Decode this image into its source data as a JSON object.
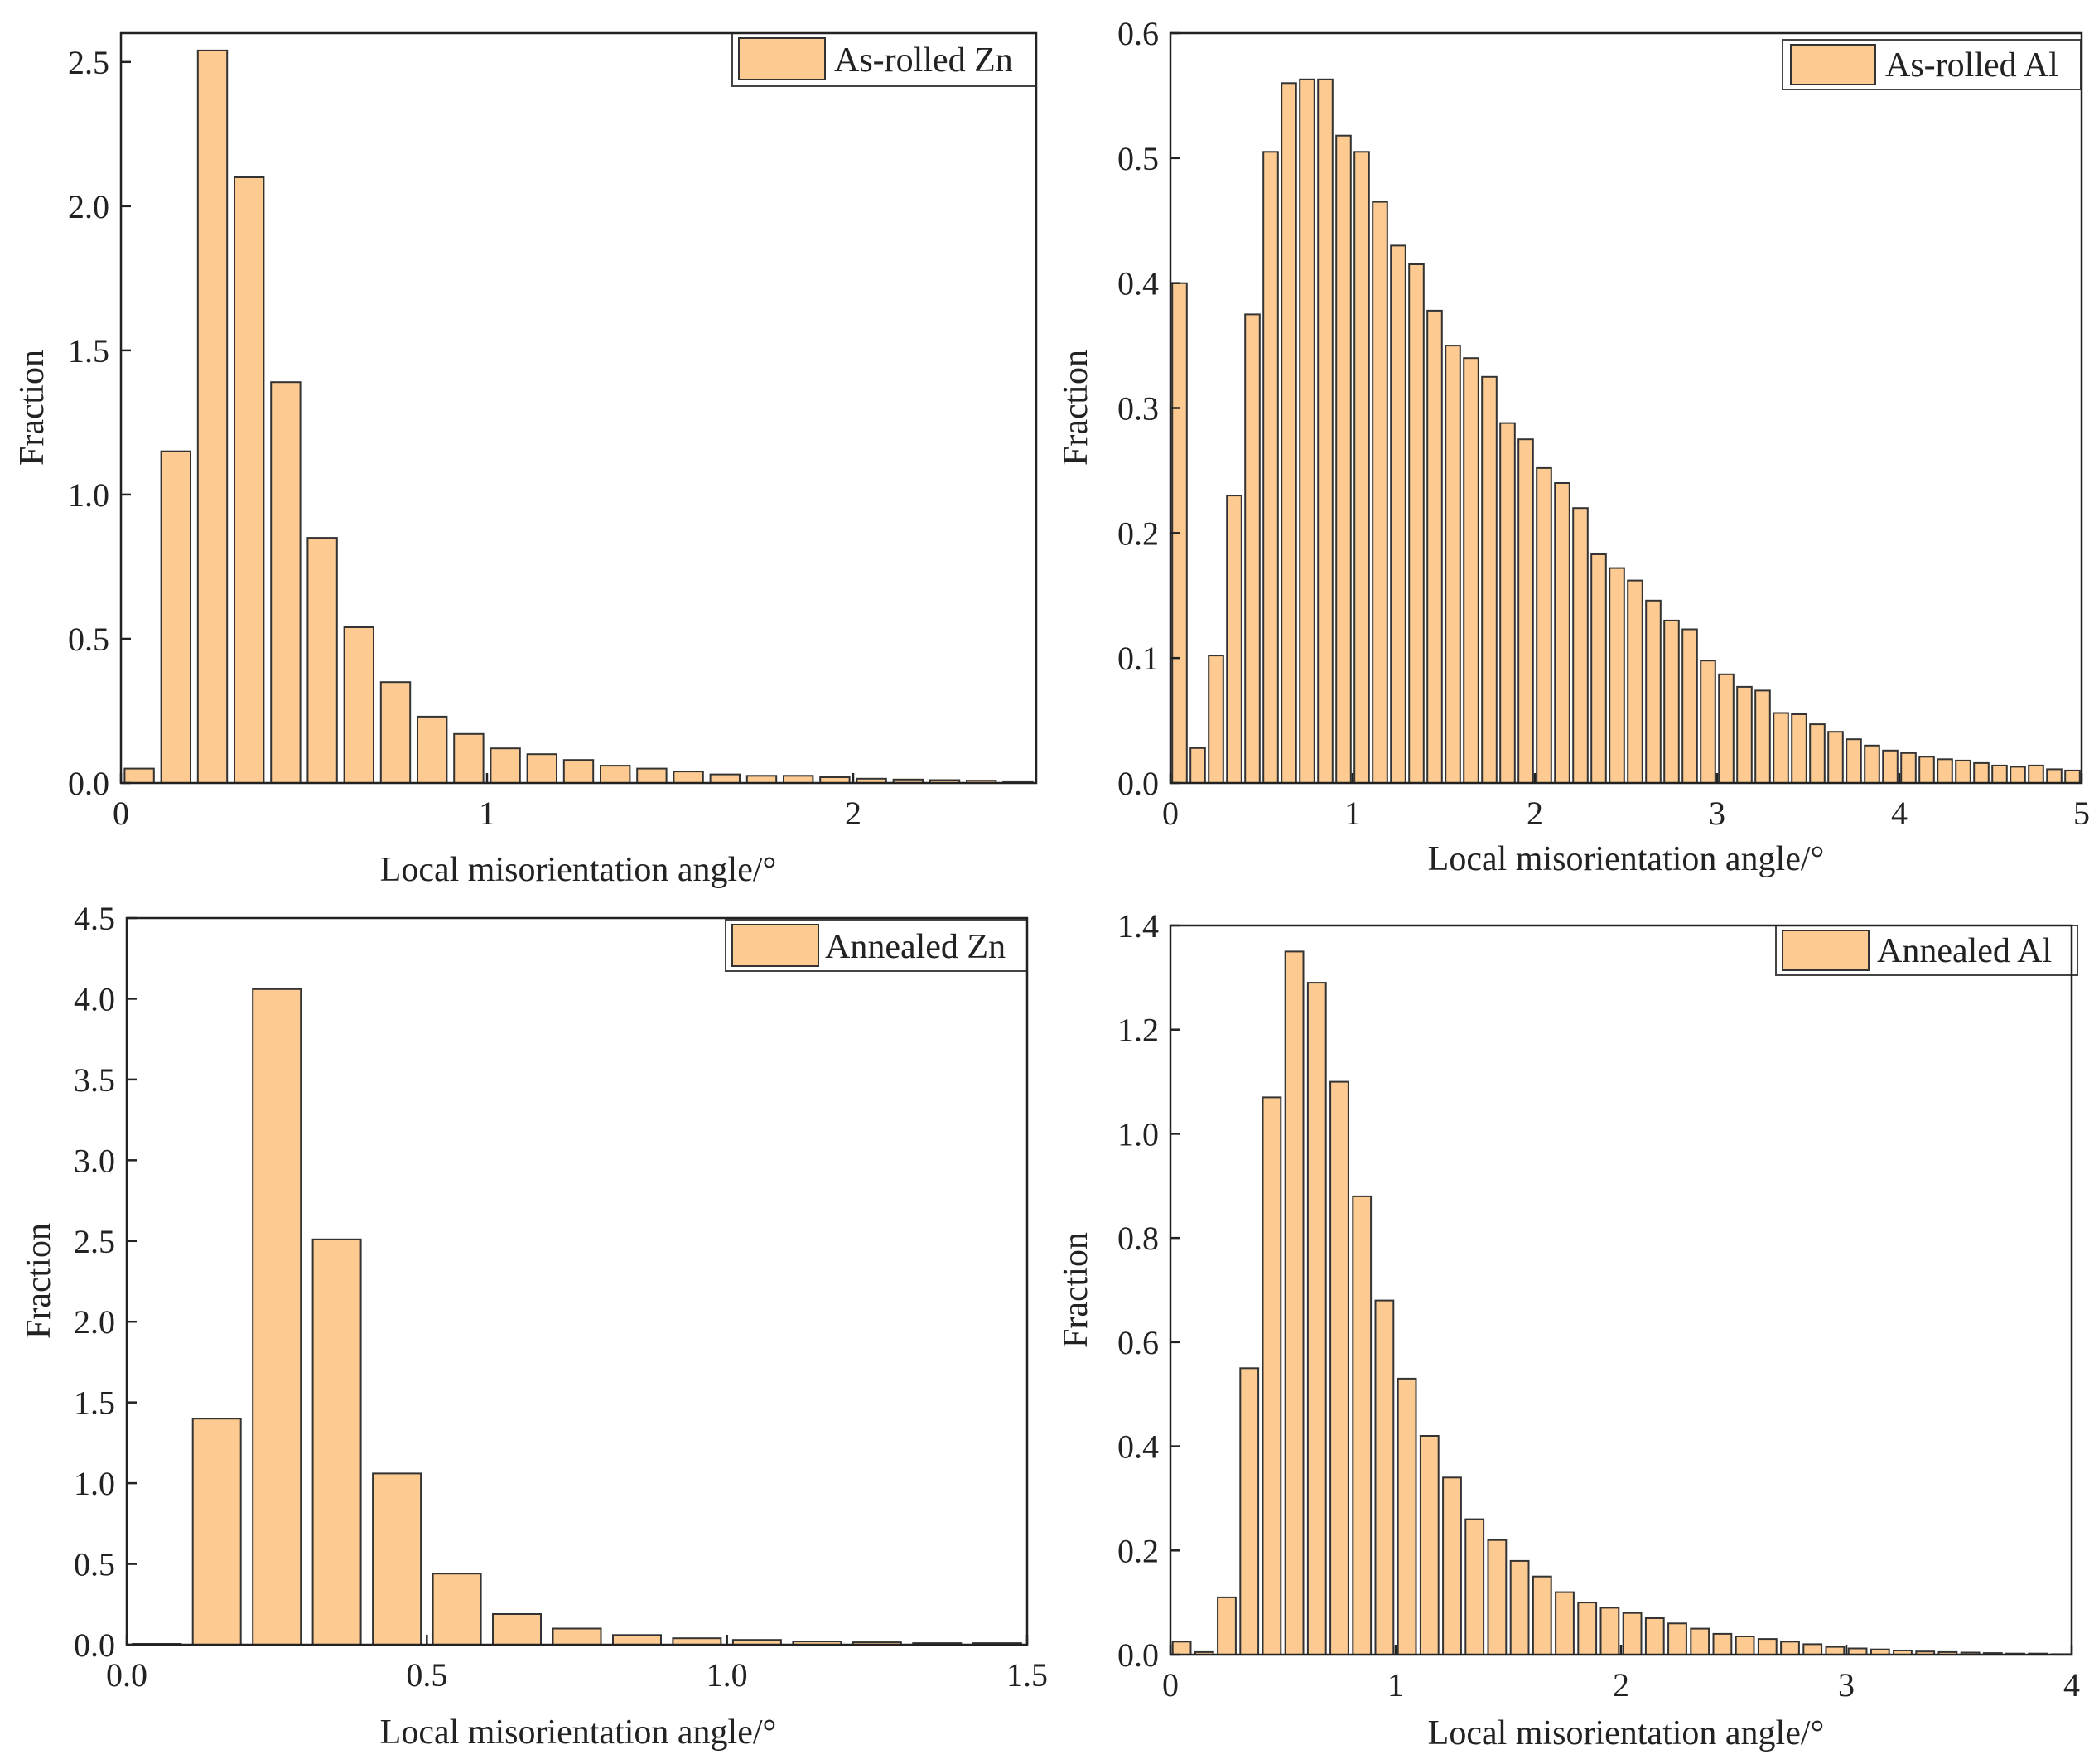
{
  "colors": {
    "bar_fill": "#FDCB92",
    "bar_edge": "#333333",
    "axis": "#222222",
    "background": "#ffffff"
  },
  "chart_data": [
    {
      "id": "as-rolled-zn",
      "type": "bar",
      "legend": "As-rolled Zn",
      "legend_position": "top-right",
      "xlabel": "Local misorientation angle/°",
      "ylabel": "Fraction",
      "xlim": [
        0,
        2.5
      ],
      "ylim": [
        0,
        2.6
      ],
      "xticks": [
        0,
        1,
        2
      ],
      "xtick_labels": [
        "0",
        "1",
        "2"
      ],
      "yticks": [
        0,
        0.5,
        1.0,
        1.5,
        2.0,
        2.5
      ],
      "ytick_labels": [
        "0.0",
        "0.5",
        "1.0",
        "1.5",
        "2.0",
        "2.5"
      ],
      "bin_width": 0.1,
      "x": [
        0.05,
        0.15,
        0.25,
        0.35,
        0.45,
        0.55,
        0.65,
        0.75,
        0.85,
        0.95,
        1.05,
        1.15,
        1.25,
        1.35,
        1.45,
        1.55,
        1.65,
        1.75,
        1.85,
        1.95,
        2.05,
        2.15,
        2.25,
        2.35,
        2.45
      ],
      "values": [
        0.05,
        1.15,
        2.54,
        2.1,
        1.39,
        0.85,
        0.54,
        0.35,
        0.23,
        0.17,
        0.12,
        0.1,
        0.08,
        0.06,
        0.05,
        0.04,
        0.03,
        0.025,
        0.025,
        0.02,
        0.015,
        0.012,
        0.01,
        0.008,
        0.006
      ]
    },
    {
      "id": "as-rolled-al",
      "type": "bar",
      "legend": "As-rolled Al",
      "legend_position": "top-right",
      "xlabel": "Local misorientation angle/°",
      "ylabel": "Fraction",
      "xlim": [
        0,
        5
      ],
      "ylim": [
        0,
        0.6
      ],
      "xticks": [
        0,
        1,
        2,
        3,
        4,
        5
      ],
      "xtick_labels": [
        "0",
        "1",
        "2",
        "3",
        "4",
        "5"
      ],
      "yticks": [
        0,
        0.1,
        0.2,
        0.3,
        0.4,
        0.5,
        0.6
      ],
      "ytick_labels": [
        "0.0",
        "0.1",
        "0.2",
        "0.3",
        "0.4",
        "0.5",
        "0.6"
      ],
      "bin_width": 0.1,
      "x": [
        0.05,
        0.15,
        0.25,
        0.35,
        0.45,
        0.55,
        0.65,
        0.75,
        0.85,
        0.95,
        1.05,
        1.15,
        1.25,
        1.35,
        1.45,
        1.55,
        1.65,
        1.75,
        1.85,
        1.95,
        2.05,
        2.15,
        2.25,
        2.35,
        2.45,
        2.55,
        2.65,
        2.75,
        2.85,
        2.95,
        3.05,
        3.15,
        3.25,
        3.35,
        3.45,
        3.55,
        3.65,
        3.75,
        3.85,
        3.95,
        4.05,
        4.15,
        4.25,
        4.35,
        4.45,
        4.55,
        4.65,
        4.75,
        4.85,
        4.95
      ],
      "values": [
        0.4,
        0.028,
        0.102,
        0.23,
        0.375,
        0.505,
        0.56,
        0.563,
        0.563,
        0.518,
        0.505,
        0.465,
        0.43,
        0.415,
        0.378,
        0.35,
        0.34,
        0.325,
        0.288,
        0.275,
        0.252,
        0.24,
        0.22,
        0.183,
        0.172,
        0.162,
        0.146,
        0.13,
        0.123,
        0.098,
        0.087,
        0.077,
        0.074,
        0.056,
        0.055,
        0.047,
        0.041,
        0.035,
        0.03,
        0.026,
        0.024,
        0.021,
        0.019,
        0.018,
        0.016,
        0.014,
        0.013,
        0.014,
        0.011,
        0.01
      ]
    },
    {
      "id": "annealed-zn",
      "type": "bar",
      "legend": "Annealed Zn",
      "legend_position": "top-right",
      "xlabel": "Local misorientation angle/°",
      "ylabel": "Fraction",
      "xlim": [
        0,
        1.5
      ],
      "ylim": [
        0,
        4.5
      ],
      "xticks": [
        0,
        0.5,
        1.0,
        1.5
      ],
      "xtick_labels": [
        "0.0",
        "0.5",
        "1.0",
        "1.5"
      ],
      "yticks": [
        0,
        0.5,
        1.0,
        1.5,
        2.0,
        2.5,
        3.0,
        3.5,
        4.0,
        4.5
      ],
      "ytick_labels": [
        "0.0",
        "0.5",
        "1.0",
        "1.5",
        "2.0",
        "2.5",
        "3.0",
        "3.5",
        "4.0",
        "4.5"
      ],
      "bin_width": 0.1,
      "x": [
        0.05,
        0.15,
        0.25,
        0.35,
        0.45,
        0.55,
        0.65,
        0.75,
        0.85,
        0.95,
        1.05,
        1.15,
        1.25,
        1.35,
        1.45
      ],
      "values": [
        0.005,
        1.4,
        4.06,
        2.51,
        1.06,
        0.44,
        0.19,
        0.1,
        0.06,
        0.04,
        0.03,
        0.02,
        0.015,
        0.01,
        0.01
      ]
    },
    {
      "id": "annealed-al",
      "type": "bar",
      "legend": "Annealed Al",
      "legend_position": "top-right",
      "xlabel": "Local misorientation angle/°",
      "ylabel": "Fraction",
      "xlim": [
        0,
        4
      ],
      "ylim": [
        0,
        1.4
      ],
      "xticks": [
        0,
        1,
        2,
        3,
        4
      ],
      "xtick_labels": [
        "0",
        "1",
        "2",
        "3",
        "4"
      ],
      "yticks": [
        0,
        0.2,
        0.4,
        0.6,
        0.8,
        1.0,
        1.2,
        1.4
      ],
      "ytick_labels": [
        "0.0",
        "0.2",
        "0.4",
        "0.6",
        "0.8",
        "1.0",
        "1.2",
        "1.4"
      ],
      "bin_width": 0.1,
      "x": [
        0.05,
        0.15,
        0.25,
        0.35,
        0.45,
        0.55,
        0.65,
        0.75,
        0.85,
        0.95,
        1.05,
        1.15,
        1.25,
        1.35,
        1.45,
        1.55,
        1.65,
        1.75,
        1.85,
        1.95,
        2.05,
        2.15,
        2.25,
        2.35,
        2.45,
        2.55,
        2.65,
        2.75,
        2.85,
        2.95,
        3.05,
        3.15,
        3.25,
        3.35,
        3.45,
        3.55,
        3.65,
        3.75,
        3.85,
        3.95
      ],
      "values": [
        0.025,
        0.005,
        0.11,
        0.55,
        1.07,
        1.35,
        1.29,
        1.1,
        0.88,
        0.68,
        0.53,
        0.42,
        0.34,
        0.26,
        0.22,
        0.18,
        0.15,
        0.12,
        0.1,
        0.09,
        0.08,
        0.07,
        0.06,
        0.05,
        0.04,
        0.035,
        0.03,
        0.025,
        0.02,
        0.015,
        0.012,
        0.01,
        0.008,
        0.006,
        0.005,
        0.004,
        0.003,
        0.002,
        0.002,
        0.001
      ]
    }
  ]
}
